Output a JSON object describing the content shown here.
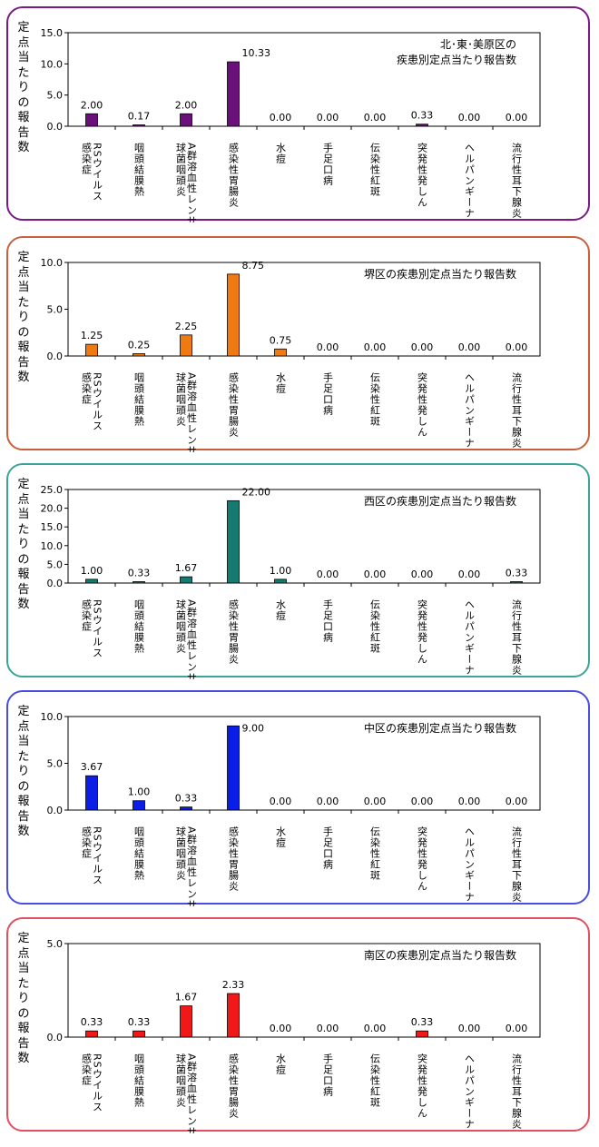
{
  "categories": [
    "RSウイルス感染症",
    "咽頭結膜熱",
    "A群溶血性レンサ球菌咽頭炎",
    "感染性胃腸炎",
    "水痘",
    "手足口病",
    "伝染性紅斑",
    "突発性発しん",
    "ヘルパンギーナ",
    "流行性耳下腺炎"
  ],
  "category_display": [
    [
      "RSウイルス",
      "感染症"
    ],
    [
      "咽頭結膜熱"
    ],
    [
      "A群溶血性レンサ",
      "球菌咽頭炎"
    ],
    [
      "感染性胃腸炎"
    ],
    [
      "水痘"
    ],
    [
      "手足口病"
    ],
    [
      "伝染性紅斑"
    ],
    [
      "突発性発しん"
    ],
    [
      "ヘルパンギーナ"
    ],
    [
      "流行性耳下腺炎"
    ]
  ],
  "ylabel": "定点当たりの報告数",
  "chart_data": [
    {
      "type": "bar",
      "title": "北･東･美原区の疾患別定点当たり報告数",
      "title_lines": [
        "北･東･美原区の",
        "疾患別定点当たり報告数"
      ],
      "ylabel": "定点当たりの報告数",
      "ylim": [
        0,
        15
      ],
      "yticks": [
        "0.0",
        "5.0",
        "10.0",
        "15.0"
      ],
      "values": [
        2.0,
        0.17,
        2.0,
        10.33,
        0.0,
        0.0,
        0.0,
        0.33,
        0.0,
        0.0
      ],
      "value_labels": [
        "2.00",
        "0.17",
        "2.00",
        "10.33",
        "0.00",
        "0.00",
        "0.00",
        "0.33",
        "0.00",
        "0.00"
      ],
      "bar_color": "#6b0f7b",
      "border_color": "#7a1a86"
    },
    {
      "type": "bar",
      "title": "堺区の疾患別定点当たり報告数",
      "title_lines": [
        "堺区の疾患別定点当たり報告数"
      ],
      "ylabel": "定点当たりの報告数",
      "ylim": [
        0,
        10
      ],
      "yticks": [
        "0.0",
        "5.0",
        "10.0"
      ],
      "values": [
        1.25,
        0.25,
        2.25,
        8.75,
        0.75,
        0.0,
        0.0,
        0.0,
        0.0,
        0.0
      ],
      "value_labels": [
        "1.25",
        "0.25",
        "2.25",
        "8.75",
        "0.75",
        "0.00",
        "0.00",
        "0.00",
        "0.00",
        "0.00"
      ],
      "bar_color": "#f07a12",
      "border_color": "#c9603c"
    },
    {
      "type": "bar",
      "title": "西区の疾患別定点当たり報告数",
      "title_lines": [
        "西区の疾患別定点当たり報告数"
      ],
      "ylabel": "定点当たりの報告数",
      "ylim": [
        0,
        25
      ],
      "yticks": [
        "0.0",
        "5.0",
        "10.0",
        "15.0",
        "20.0",
        "25.0"
      ],
      "values": [
        1.0,
        0.33,
        1.67,
        22.0,
        1.0,
        0.0,
        0.0,
        0.0,
        0.0,
        0.33
      ],
      "value_labels": [
        "1.00",
        "0.33",
        "1.67",
        "22.00",
        "1.00",
        "0.00",
        "0.00",
        "0.00",
        "0.00",
        "0.33"
      ],
      "bar_color": "#157a70",
      "border_color": "#3ba39a"
    },
    {
      "type": "bar",
      "title": "中区の疾患別定点当たり報告数",
      "title_lines": [
        "中区の疾患別定点当たり報告数"
      ],
      "ylabel": "定点当たりの報告数",
      "ylim": [
        0,
        10
      ],
      "yticks": [
        "0.0",
        "5.0",
        "10.0"
      ],
      "values": [
        3.67,
        1.0,
        0.33,
        9.0,
        0.0,
        0.0,
        0.0,
        0.0,
        0.0,
        0.0
      ],
      "value_labels": [
        "3.67",
        "1.00",
        "0.33",
        "9.00",
        "0.00",
        "0.00",
        "0.00",
        "0.00",
        "0.00",
        "0.00"
      ],
      "bar_color": "#0a1ee8",
      "border_color": "#4a4ee0"
    },
    {
      "type": "bar",
      "title": "南区の疾患別定点当たり報告数",
      "title_lines": [
        "南区の疾患別定点当たり報告数"
      ],
      "ylabel": "定点当たりの報告数",
      "ylim": [
        0,
        5
      ],
      "yticks": [
        "0.0",
        "5.0"
      ],
      "values": [
        0.33,
        0.33,
        1.67,
        2.33,
        0.0,
        0.0,
        0.0,
        0.33,
        0.0,
        0.0
      ],
      "value_labels": [
        "0.33",
        "0.33",
        "1.67",
        "2.33",
        "0.00",
        "0.00",
        "0.00",
        "0.33",
        "0.00",
        "0.00"
      ],
      "bar_color": "#f01818",
      "border_color": "#e05060"
    }
  ]
}
